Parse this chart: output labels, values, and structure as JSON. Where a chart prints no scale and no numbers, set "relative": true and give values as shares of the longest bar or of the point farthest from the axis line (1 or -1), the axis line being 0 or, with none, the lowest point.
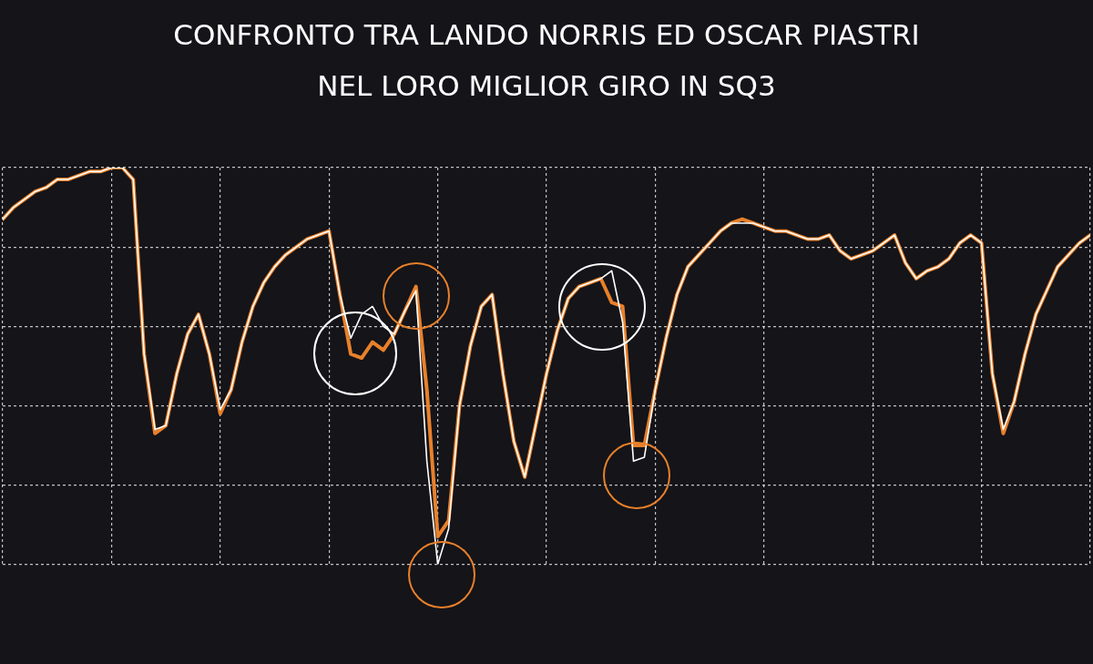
{
  "chart_data": {
    "type": "line",
    "title": "CONFRONTO TRA LANDO NORRIS ED OSCAR PIASTRI",
    "subtitle": "NEL LORO MIGLIOR GIRO IN SQ3",
    "relative": true,
    "grid": true,
    "legend": false,
    "marker": "none",
    "line_style": "solid",
    "categories": [
      null,
      null,
      null,
      null,
      null,
      null,
      null,
      null,
      null,
      null,
      null,
      null,
      null,
      null,
      null,
      null,
      null,
      null,
      null,
      null,
      null,
      null,
      null,
      null,
      null,
      null,
      null,
      null,
      null,
      null,
      null,
      null,
      null,
      null,
      null,
      null,
      null,
      null,
      null,
      null,
      null,
      null,
      null,
      null,
      null,
      null,
      null,
      null,
      null,
      null,
      null,
      null,
      null,
      null,
      null,
      null,
      null,
      null,
      null,
      null,
      null,
      null,
      null,
      null,
      null,
      null,
      null,
      null,
      null,
      null,
      null,
      null,
      null,
      null,
      null,
      null,
      null,
      null,
      null,
      null,
      null,
      null,
      null,
      null,
      null,
      null,
      null,
      null,
      null,
      null,
      null,
      null,
      null,
      null,
      null,
      null,
      null,
      null,
      null,
      null,
      null
    ],
    "series": [
      {
        "color": "#e8802a",
        "values": [
          0.87,
          0.9,
          0.92,
          0.94,
          0.95,
          0.97,
          0.97,
          0.98,
          0.99,
          0.99,
          1,
          1,
          0.97,
          0.53,
          0.33,
          0.35,
          0.48,
          0.58,
          0.63,
          0.53,
          0.38,
          0.44,
          0.56,
          0.65,
          0.71,
          0.75,
          0.78,
          0.8,
          0.82,
          0.83,
          0.84,
          0.68,
          0.53,
          0.52,
          0.56,
          0.54,
          0.58,
          0.64,
          0.7,
          0.44,
          0.07,
          0.11,
          0.4,
          0.55,
          0.65,
          0.68,
          0.48,
          0.31,
          0.22,
          0.35,
          0.48,
          0.59,
          0.67,
          0.7,
          0.71,
          0.72,
          0.66,
          0.65,
          0.3,
          0.3,
          0.44,
          0.57,
          0.68,
          0.75,
          0.78,
          0.81,
          0.84,
          0.86,
          0.87,
          0.86,
          0.85,
          0.84,
          0.84,
          0.83,
          0.82,
          0.82,
          0.83,
          0.79,
          0.77,
          0.78,
          0.79,
          0.81,
          0.83,
          0.76,
          0.72,
          0.74,
          0.75,
          0.77,
          0.81,
          0.83,
          0.81,
          0.48,
          0.33,
          0.41,
          0.53,
          0.63,
          0.69,
          0.75,
          0.78,
          0.81,
          0.83
        ]
      },
      {
        "color": "#ffffff",
        "values": [
          0.87,
          0.9,
          0.92,
          0.94,
          0.95,
          0.97,
          0.97,
          0.98,
          0.99,
          0.99,
          1,
          1,
          0.97,
          0.53,
          0.34,
          0.35,
          0.48,
          0.58,
          0.63,
          0.53,
          0.39,
          0.44,
          0.56,
          0.65,
          0.71,
          0.75,
          0.78,
          0.8,
          0.82,
          0.83,
          0.84,
          0.68,
          0.57,
          0.63,
          0.65,
          0.6,
          0.58,
          0.64,
          0.69,
          0.26,
          0,
          0.09,
          0.4,
          0.55,
          0.65,
          0.68,
          0.48,
          0.31,
          0.22,
          0.35,
          0.48,
          0.59,
          0.67,
          0.7,
          0.71,
          0.72,
          0.74,
          0.61,
          0.26,
          0.27,
          0.44,
          0.57,
          0.68,
          0.75,
          0.78,
          0.81,
          0.84,
          0.86,
          0.86,
          0.86,
          0.85,
          0.84,
          0.84,
          0.83,
          0.82,
          0.82,
          0.83,
          0.79,
          0.77,
          0.78,
          0.79,
          0.81,
          0.83,
          0.76,
          0.72,
          0.74,
          0.75,
          0.77,
          0.81,
          0.83,
          0.81,
          0.48,
          0.34,
          0.41,
          0.53,
          0.63,
          0.69,
          0.75,
          0.78,
          0.81,
          0.83
        ]
      }
    ]
  }
}
